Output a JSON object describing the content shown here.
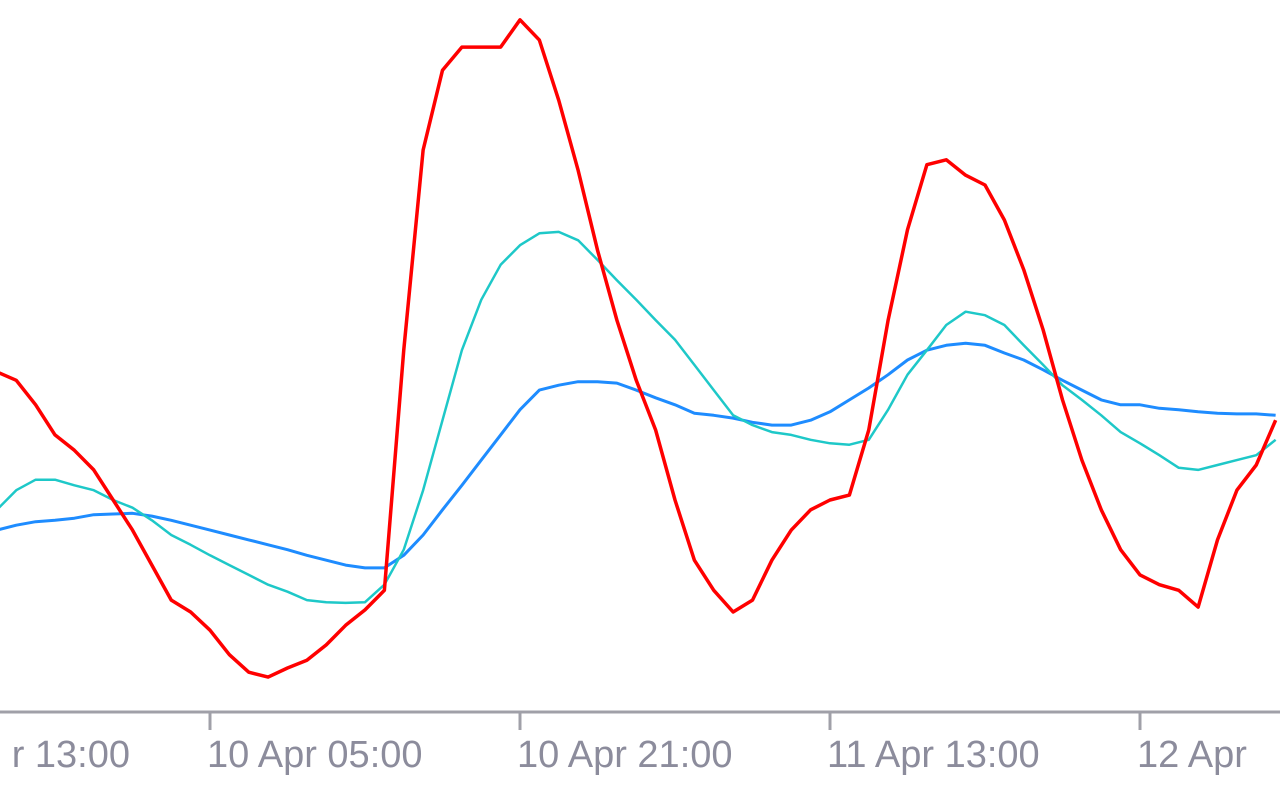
{
  "chart_data": {
    "type": "line",
    "categories": [
      "r 13:00",
      null,
      null,
      null,
      null,
      null,
      null,
      null,
      null,
      null,
      null,
      null,
      null,
      null,
      null,
      null,
      "10 Apr 05:00",
      null,
      null,
      null,
      null,
      null,
      null,
      null,
      null,
      null,
      null,
      null,
      null,
      null,
      null,
      null,
      "10 Apr 21:00",
      null,
      null,
      null,
      null,
      null,
      null,
      null,
      null,
      null,
      null,
      null,
      null,
      null,
      null,
      null,
      "11 Apr 13:00",
      null,
      null,
      null,
      null,
      null,
      null,
      null,
      null,
      null,
      null,
      null,
      null,
      null,
      null,
      null,
      "12 Apr",
      null,
      null,
      null,
      null,
      null,
      null,
      null
    ],
    "ylim": [
      0,
      100
    ],
    "series": [
      {
        "color": "#ff0000",
        "values": [
          null,
          null,
          null,
          null,
          null,
          48.3,
          47.1,
          43.6,
          39.3,
          37.1,
          34.3,
          30,
          25.7,
          20.7,
          15.7,
          14,
          11.4,
          7.9,
          5.4,
          4.7,
          6,
          7.1,
          9.3,
          12.1,
          14.3,
          17.1,
          51.4,
          80,
          91.4,
          94.7,
          94.7,
          94.7,
          98.6,
          95.7,
          87.1,
          77.1,
          65.7,
          55.7,
          47.1,
          40,
          30,
          21.4,
          17.1,
          14,
          15.7,
          21.4,
          25.7,
          28.6,
          30,
          30.7,
          40,
          55.7,
          68.6,
          77.9,
          78.6,
          76.4,
          75,
          70,
          62.9,
          54.3,
          44.3,
          35.7,
          28.6,
          22.9,
          19.3,
          17.9,
          17.1,
          14.7,
          24.3,
          31.4,
          35,
          41.4
        ]
      },
      {
        "color": "#1ec8c8",
        "values": [
          null,
          null,
          null,
          null,
          null,
          28.6,
          31.4,
          32.9,
          32.9,
          32.1,
          31.4,
          30,
          28.9,
          27.1,
          25,
          23.6,
          22.1,
          20.7,
          19.3,
          17.9,
          16.9,
          15.7,
          15.4,
          15.3,
          15.4,
          17.9,
          22.9,
          31.4,
          41.4,
          51.4,
          58.6,
          63.6,
          66.4,
          68.1,
          68.3,
          67.1,
          64.3,
          61.4,
          58.6,
          55.7,
          52.9,
          49.3,
          45.7,
          42.1,
          40.7,
          39.7,
          39.3,
          38.6,
          38.1,
          37.9,
          38.6,
          42.9,
          47.9,
          51.4,
          55,
          56.9,
          56.4,
          55,
          52.1,
          49.3,
          46.4,
          44.3,
          42.1,
          39.7,
          38.1,
          36.4,
          34.6,
          34.3,
          35,
          35.7,
          36.4,
          38.6
        ]
      },
      {
        "color": "#1e8cff",
        "values": [
          null,
          null,
          null,
          null,
          null,
          25.7,
          26.4,
          26.9,
          27.1,
          27.4,
          27.9,
          28,
          28.1,
          27.7,
          27.1,
          26.4,
          25.7,
          25,
          24.3,
          23.6,
          22.9,
          22.1,
          21.4,
          20.7,
          20.3,
          20.3,
          22.1,
          25,
          28.6,
          32.1,
          35.7,
          39.3,
          42.9,
          45.7,
          46.4,
          46.9,
          46.9,
          46.7,
          45.7,
          44.6,
          43.6,
          42.4,
          42.1,
          41.7,
          41.1,
          40.7,
          40.7,
          41.4,
          42.6,
          44.3,
          46,
          47.9,
          50,
          51.4,
          52.1,
          52.4,
          52.1,
          51,
          50,
          48.6,
          47.1,
          45.7,
          44.3,
          43.6,
          43.6,
          43.1,
          42.9,
          42.6,
          42.4,
          42.3,
          42.3,
          42.1
        ]
      }
    ]
  }
}
